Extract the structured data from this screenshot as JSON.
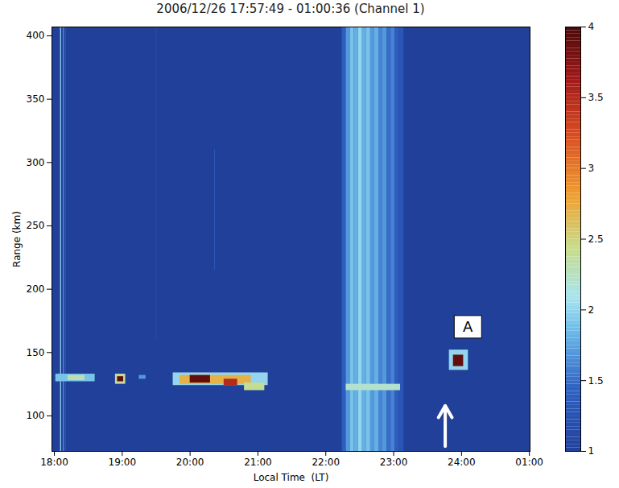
{
  "chart_data": {
    "type": "heatmap",
    "title": "2006/12/26  17:57:49 - 01:00:36 (Channel 1)",
    "x_label": "Local Time  (LT)",
    "y_label": "Range (km)",
    "xlim": [
      17.964,
      25.01
    ],
    "xticks": [
      {
        "value": 18,
        "label": "18:00"
      },
      {
        "value": 19,
        "label": "19:00"
      },
      {
        "value": 20,
        "label": "20:00"
      },
      {
        "value": 21,
        "label": "21:00"
      },
      {
        "value": 22,
        "label": "22:00"
      },
      {
        "value": 23,
        "label": "23:00"
      },
      {
        "value": 24,
        "label": "24:00"
      },
      {
        "value": 25,
        "label": "01:00"
      }
    ],
    "ylim": [
      72,
      407
    ],
    "yticks": [
      100,
      150,
      200,
      250,
      300,
      350,
      400
    ],
    "colorbar": {
      "lim": [
        1,
        4
      ],
      "ticks": [
        1,
        1.5,
        2,
        2.5,
        3,
        3.5,
        4
      ]
    },
    "cells": [
      {
        "x0": 17.964,
        "x1": 25.01,
        "y0": 72,
        "y1": 407,
        "value": 1
      },
      {
        "x0": 18.09,
        "x1": 18.105,
        "y0": 72,
        "y1": 407,
        "value": 2.0
      },
      {
        "x0": 18.13,
        "x1": 18.14,
        "y0": 72,
        "y1": 407,
        "value": 1.8
      },
      {
        "x0": 18.16,
        "x1": 18.17,
        "y0": 72,
        "y1": 407,
        "value": 1.5
      },
      {
        "x0": 19.5,
        "x1": 19.51,
        "y0": 160,
        "y1": 407,
        "value": 1.2
      },
      {
        "x0": 20.36,
        "x1": 20.37,
        "y0": 215,
        "y1": 310,
        "value": 1.4
      },
      {
        "x0": 22.24,
        "x1": 22.3,
        "y0": 72,
        "y1": 407,
        "value": 1.4
      },
      {
        "x0": 22.3,
        "x1": 22.36,
        "y0": 72,
        "y1": 407,
        "value": 1.7
      },
      {
        "x0": 22.36,
        "x1": 22.42,
        "y0": 72,
        "y1": 407,
        "value": 1.9
      },
      {
        "x0": 22.42,
        "x1": 22.48,
        "y0": 72,
        "y1": 407,
        "value": 1.8
      },
      {
        "x0": 22.48,
        "x1": 22.54,
        "y0": 72,
        "y1": 407,
        "value": 2.0
      },
      {
        "x0": 22.54,
        "x1": 22.6,
        "y0": 72,
        "y1": 407,
        "value": 1.8
      },
      {
        "x0": 22.6,
        "x1": 22.66,
        "y0": 72,
        "y1": 407,
        "value": 1.9
      },
      {
        "x0": 22.66,
        "x1": 22.72,
        "y0": 72,
        "y1": 407,
        "value": 1.7
      },
      {
        "x0": 22.72,
        "x1": 22.78,
        "y0": 72,
        "y1": 407,
        "value": 1.8
      },
      {
        "x0": 22.78,
        "x1": 22.84,
        "y0": 72,
        "y1": 407,
        "value": 1.6
      },
      {
        "x0": 22.84,
        "x1": 22.9,
        "y0": 72,
        "y1": 407,
        "value": 1.7
      },
      {
        "x0": 22.9,
        "x1": 22.96,
        "y0": 72,
        "y1": 407,
        "value": 1.5
      },
      {
        "x0": 22.96,
        "x1": 23.02,
        "y0": 72,
        "y1": 407,
        "value": 1.6
      },
      {
        "x0": 23.02,
        "x1": 23.08,
        "y0": 72,
        "y1": 407,
        "value": 1.4
      },
      {
        "x0": 23.08,
        "x1": 23.15,
        "y0": 72,
        "y1": 407,
        "value": 1.3
      },
      {
        "x0": 22.3,
        "x1": 23.1,
        "y0": 120,
        "y1": 125,
        "value": 2.2
      },
      {
        "x0": 18.02,
        "x1": 18.6,
        "y0": 127,
        "y1": 133,
        "value": 1.9
      },
      {
        "x0": 18.2,
        "x1": 18.45,
        "y0": 128,
        "y1": 132,
        "value": 2.3
      },
      {
        "x0": 18.9,
        "x1": 19.05,
        "y0": 125,
        "y1": 133,
        "value": 2.4
      },
      {
        "x0": 18.93,
        "x1": 19.02,
        "y0": 127,
        "y1": 131,
        "value": 3.9
      },
      {
        "x0": 19.25,
        "x1": 19.35,
        "y0": 129,
        "y1": 132,
        "value": 1.7
      },
      {
        "x0": 19.75,
        "x1": 21.15,
        "y0": 124,
        "y1": 134,
        "value": 2.0
      },
      {
        "x0": 19.85,
        "x1": 20.9,
        "y0": 125,
        "y1": 132,
        "value": 2.7
      },
      {
        "x0": 20.0,
        "x1": 20.3,
        "y0": 126,
        "y1": 132,
        "value": 3.9
      },
      {
        "x0": 20.5,
        "x1": 20.7,
        "y0": 124,
        "y1": 129,
        "value": 3.5
      },
      {
        "x0": 20.8,
        "x1": 21.1,
        "y0": 120,
        "y1": 126,
        "value": 2.4
      },
      {
        "x0": 23.82,
        "x1": 24.1,
        "y0": 136,
        "y1": 152,
        "value": 2.0
      },
      {
        "x0": 23.88,
        "x1": 24.03,
        "y0": 139,
        "y1": 148,
        "value": 3.9
      }
    ],
    "annotations": [
      {
        "text": "A",
        "x": 24.1,
        "y": 170
      }
    ],
    "arrow": {
      "x": 23.76,
      "y_from": 76,
      "y_to": 108
    }
  }
}
